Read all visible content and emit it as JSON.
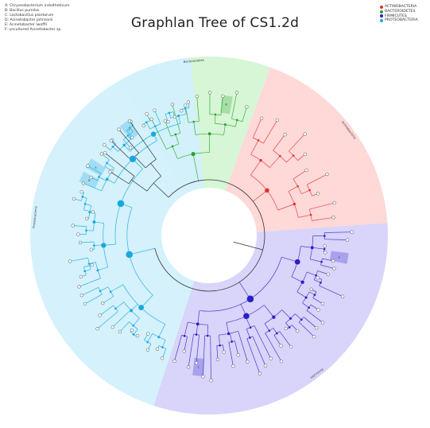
{
  "title": "Graphlan Tree of CS1.2d",
  "legend_items": [
    "A: Chryseobacterium indoltheticum",
    "B: Bacillus pumilus",
    "C: Lactobacillus plantarum",
    "D: Acinetobacter johnsonii",
    "E: Acinetobacter lwoffii",
    "F: uncultured Acinetobacter sp."
  ],
  "phyla_legend": [
    {
      "label": "ACTINOBACTERIA",
      "color": "#e03030"
    },
    {
      "label": "BACTEROIDETES",
      "color": "#30a030"
    },
    {
      "label": "FIRMICUTES",
      "color": "#2020c8"
    },
    {
      "label": "PROTEOBACTERIA",
      "color": "#18a8e0"
    }
  ],
  "clades": [
    {
      "name": "actinobacteria",
      "label": "Actinobacteria",
      "fill": "#ffd6d6",
      "line": "#e04848",
      "node": "#e03030",
      "angles": [
        -70,
        -4
      ],
      "tips": 10
    },
    {
      "name": "bacteroidetes",
      "label": "Bacteroidetes",
      "fill": "#d4f5d4",
      "line": "#3cb03c",
      "node": "#2ca02c",
      "angles": [
        -120,
        -70
      ],
      "tips": 9
    },
    {
      "name": "firmicutes",
      "label": "Firmicutes",
      "fill": "#d6d2fa",
      "line": "#4a3acc",
      "node": "#2a1ec8",
      "angles": [
        -4,
        108
      ],
      "tips": 34
    },
    {
      "name": "proteobacteria",
      "label": "Proteobacteria",
      "fill": "#d2f0fc",
      "line": "#28b4e0",
      "node": "#18a8e0",
      "angles": [
        108,
        264
      ],
      "tips": 42
    }
  ],
  "unassigned": {
    "line": "#333333",
    "angles": [
      -150,
      -122
    ],
    "tips": 5
  },
  "highlights": [
    {
      "clade": "bacteroidetes",
      "label": "B"
    },
    {
      "clade": "firmicutes",
      "label": "A"
    },
    {
      "clade": "firmicutes",
      "label": "C"
    },
    {
      "clade": "proteobacteria",
      "label": "D"
    },
    {
      "clade": "proteobacteria",
      "label": "E"
    },
    {
      "clade": "proteobacteria",
      "label": "F"
    }
  ]
}
